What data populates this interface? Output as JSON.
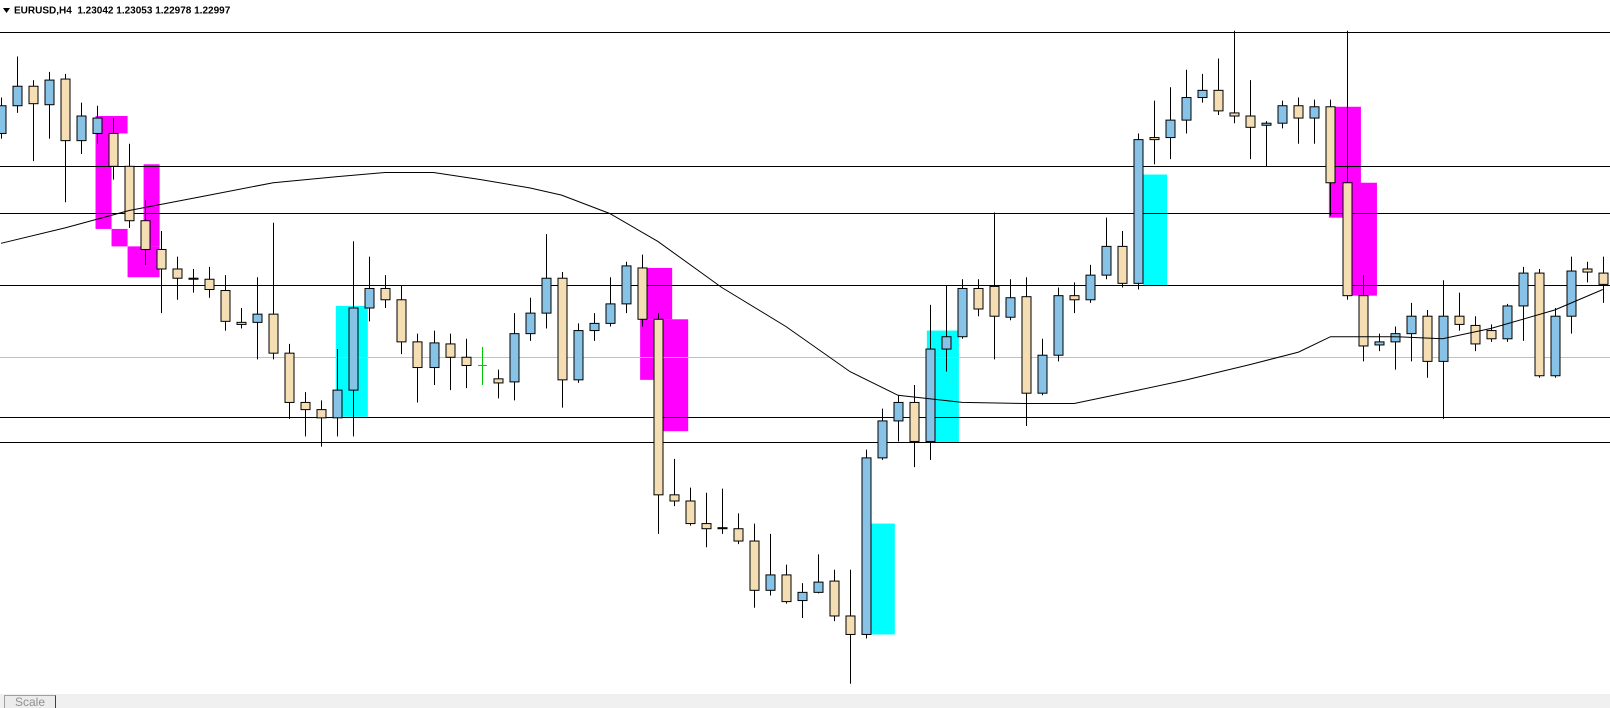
{
  "header": {
    "title": "EURUSD,H4  1.23042 1.23053 1.22978 1.22997"
  },
  "chart_data": {
    "type": "candlestick",
    "xlim": [
      -0.064,
      100.45
    ],
    "ylim": [
      1.23324,
      1.24
    ],
    "up_color": "#87c3e6",
    "down_color": "#f5deb3",
    "doji_color": "#00c800",
    "open": [
      1.2387,
      1.23897,
      1.23916,
      1.23898,
      1.23923,
      1.23863,
      1.2387,
      1.2387,
      1.23838,
      1.23785,
      1.23757,
      1.23738,
      1.23729,
      1.23728,
      1.23717,
      1.23686,
      1.23686,
      1.23694,
      1.23656,
      1.23608,
      1.23601,
      1.23593,
      1.2362,
      1.237,
      1.23719,
      1.23708,
      1.23667,
      1.23642,
      1.23665,
      1.23652,
      1.23644,
      1.23631,
      1.23628,
      1.23675,
      1.23695,
      1.23729,
      1.2363,
      1.23678,
      1.23685,
      1.23704,
      1.23739,
      1.23689,
      1.23518,
      1.23512,
      1.2349,
      1.23486,
      1.23485,
      1.23473,
      1.23425,
      1.2344,
      1.23415,
      1.23423,
      1.23434,
      1.234,
      1.23382,
      1.23554,
      1.2359,
      1.23608,
      1.2357,
      1.2366,
      1.23672,
      1.23719,
      1.23721,
      1.23691,
      1.23711,
      1.23617,
      1.23654,
      1.23712,
      1.23708,
      1.23732,
      1.2376,
      1.23724,
      1.23866,
      1.23866,
      1.23883,
      1.23905,
      1.23912,
      1.2389,
      1.23887,
      1.23878,
      1.2388,
      1.23897,
      1.23885,
      1.23896,
      1.23822,
      1.23712,
      1.23664,
      1.23667,
      1.23675,
      1.23692,
      1.23648,
      1.23692,
      1.23683,
      1.23678,
      1.2367,
      1.23702,
      1.23734,
      1.23634,
      1.23692,
      1.23738,
      1.23734
    ],
    "high": [
      1.23905,
      1.23945,
      1.23922,
      1.2393,
      1.23928,
      1.239,
      1.23897,
      1.23885,
      1.2386,
      1.23805,
      1.23775,
      1.2375,
      1.23738,
      1.2374,
      1.23732,
      1.237,
      1.2373,
      1.23783,
      1.23665,
      1.23618,
      1.2361,
      1.2366,
      1.23765,
      1.2375,
      1.23732,
      1.23722,
      1.23675,
      1.23678,
      1.23675,
      1.2367,
      1.23662,
      1.2364,
      1.23695,
      1.2371,
      1.23772,
      1.23735,
      1.23685,
      1.23695,
      1.2373,
      1.23745,
      1.23752,
      1.23695,
      1.23553,
      1.23525,
      1.2352,
      1.23524,
      1.235,
      1.2349,
      1.2348,
      1.2345,
      1.23432,
      1.2346,
      1.23445,
      1.23445,
      1.23562,
      1.23602,
      1.23615,
      1.23625,
      1.23703,
      1.23722,
      1.23728,
      1.23728,
      1.23793,
      1.23728,
      1.2373,
      1.2367,
      1.2372,
      1.23725,
      1.23742,
      1.23788,
      1.23775,
      1.2387,
      1.23902,
      1.23915,
      1.23932,
      1.23928,
      1.23943,
      1.2397,
      1.23922,
      1.23882,
      1.23902,
      1.23905,
      1.23903,
      1.23903,
      1.2397,
      1.23732,
      1.23675,
      1.23682,
      1.23705,
      1.23698,
      1.23727,
      1.23715,
      1.23692,
      1.23684,
      1.23704,
      1.2374,
      1.23738,
      1.237,
      1.2375,
      1.23745,
      1.2375
    ],
    "low": [
      1.23865,
      1.2389,
      1.23843,
      1.23865,
      1.23803,
      1.2385,
      1.2386,
      1.23825,
      1.23778,
      1.23742,
      1.23695,
      1.23708,
      1.23715,
      1.2371,
      1.23678,
      1.2368,
      1.2365,
      1.2365,
      1.23592,
      1.23575,
      1.23565,
      1.23575,
      1.23575,
      1.23687,
      1.237,
      1.23655,
      1.23608,
      1.23625,
      1.2362,
      1.23622,
      1.23625,
      1.23612,
      1.2361,
      1.23668,
      1.2368,
      1.23603,
      1.23627,
      1.23668,
      1.23682,
      1.23695,
      1.23682,
      1.2348,
      1.23507,
      1.23488,
      1.23467,
      1.2348,
      1.2347,
      1.23408,
      1.2342,
      1.23412,
      1.23398,
      1.23422,
      1.23395,
      1.23334,
      1.23378,
      1.23552,
      1.2357,
      1.23545,
      1.23552,
      1.23638,
      1.2367,
      1.23692,
      1.2365,
      1.23688,
      1.23585,
      1.23615,
      1.23648,
      1.23695,
      1.23705,
      1.23728,
      1.2372,
      1.23718,
      1.2384,
      1.23845,
      1.2387,
      1.239,
      1.23888,
      1.2388,
      1.23845,
      1.23838,
      1.23875,
      1.2386,
      1.2386,
      1.2379,
      1.23708,
      1.23648,
      1.23658,
      1.2364,
      1.23648,
      1.23632,
      1.23592,
      1.23678,
      1.23658,
      1.23667,
      1.23667,
      1.23668,
      1.23632,
      1.23632,
      1.23675,
      1.23725,
      1.23705
    ],
    "close": [
      1.23897,
      1.23916,
      1.23899,
      1.23922,
      1.23863,
      1.23887,
      1.23885,
      1.23838,
      1.23785,
      1.23757,
      1.23738,
      1.23729,
      1.23728,
      1.23718,
      1.23687,
      1.23684,
      1.23694,
      1.23656,
      1.23608,
      1.23601,
      1.23593,
      1.2362,
      1.237,
      1.23719,
      1.23708,
      1.23667,
      1.23642,
      1.23666,
      1.23652,
      1.23644,
      1.23644,
      1.23627,
      1.23675,
      1.23695,
      1.23729,
      1.2363,
      1.23678,
      1.23685,
      1.23704,
      1.23741,
      1.23689,
      1.23518,
      1.23512,
      1.2349,
      1.23485,
      1.23485,
      1.23473,
      1.23425,
      1.2344,
      1.23414,
      1.23423,
      1.23433,
      1.234,
      1.23382,
      1.23554,
      1.2359,
      1.23608,
      1.2357,
      1.2366,
      1.23672,
      1.23719,
      1.23699,
      1.23692,
      1.2371,
      1.23617,
      1.23654,
      1.23712,
      1.23708,
      1.23732,
      1.2376,
      1.23724,
      1.23864,
      1.23864,
      1.23883,
      1.23905,
      1.23912,
      1.23892,
      1.23887,
      1.23876,
      1.2388,
      1.23897,
      1.23885,
      1.23896,
      1.23822,
      1.23712,
      1.23663,
      1.23667,
      1.23675,
      1.23692,
      1.23648,
      1.23692,
      1.23684,
      1.23665,
      1.2367,
      1.23702,
      1.23734,
      1.23634,
      1.23692,
      1.23736,
      1.23735,
      1.23723
    ],
    "levels": [
      {
        "value": 1.23969,
        "color": "#000000"
      },
      {
        "value": 1.23838,
        "color": "#000000"
      },
      {
        "value": 1.23793,
        "color": "#000000"
      },
      {
        "value": 1.23722,
        "color": "#000000"
      },
      {
        "value": 1.23652,
        "color": "#c0c0c0"
      },
      {
        "value": 1.23594,
        "color": "#000000"
      },
      {
        "value": 1.23569,
        "color": "#000000"
      }
    ],
    "ma": {
      "color": "#000000",
      "x": [
        0,
        4,
        8,
        13,
        17,
        21,
        24,
        27,
        30,
        33,
        35,
        38,
        41,
        45,
        49,
        53,
        56,
        60,
        64,
        67,
        71,
        74,
        78,
        81,
        83,
        87,
        90,
        93,
        97,
        100
      ],
      "values": [
        1.23763,
        1.23778,
        1.23795,
        1.2381,
        1.23822,
        1.23828,
        1.23832,
        1.23832,
        1.23825,
        1.23817,
        1.2381,
        1.23792,
        1.23765,
        1.2372,
        1.23682,
        1.23638,
        1.23615,
        1.23608,
        1.23607,
        1.23607,
        1.2362,
        1.2363,
        1.23645,
        1.23657,
        1.23672,
        1.23672,
        1.2367,
        1.2368,
        1.23698,
        1.23718
      ]
    },
    "zones": [
      {
        "color": "#ff00ff",
        "x": [
          5.9,
          7.9
        ],
        "y": [
          1.23887,
          1.2387
        ]
      },
      {
        "color": "#ff00ff",
        "x": [
          5.9,
          6.9
        ],
        "y": [
          1.2387,
          1.23777
        ]
      },
      {
        "color": "#ff00ff",
        "x": [
          6.9,
          7.9
        ],
        "y": [
          1.23777,
          1.2376
        ]
      },
      {
        "color": "#ff00ff",
        "x": [
          7.9,
          9.9
        ],
        "y": [
          1.2376,
          1.2373
        ]
      },
      {
        "color": "#ff00ff",
        "x": [
          8.9,
          9.9
        ],
        "y": [
          1.2384,
          1.2376
        ]
      },
      {
        "color": "#00ffff",
        "x": [
          20.9,
          22.9
        ],
        "y": [
          1.23702,
          1.23594
        ]
      },
      {
        "color": "#ff00ff",
        "x": [
          39.9,
          41.9
        ],
        "y": [
          1.23739,
          1.23689
        ]
      },
      {
        "color": "#ff00ff",
        "x": [
          39.9,
          40.9
        ],
        "y": [
          1.23689,
          1.2363
        ]
      },
      {
        "color": "#ff00ff",
        "x": [
          40.9,
          42.9
        ],
        "y": [
          1.23689,
          1.2358
        ]
      },
      {
        "color": "#00ffff",
        "x": [
          54.3,
          55.8
        ],
        "y": [
          1.2349,
          1.23382
        ]
      },
      {
        "color": "#00ffff",
        "x": [
          57.8,
          59.8
        ],
        "y": [
          1.23678,
          1.23569
        ]
      },
      {
        "color": "#00ffff",
        "x": [
          71.3,
          72.8
        ],
        "y": [
          1.2383,
          1.23722
        ]
      },
      {
        "color": "#ff00ff",
        "x": [
          82.9,
          84.9
        ],
        "y": [
          1.23896,
          1.23788
        ]
      },
      {
        "color": "#ff00ff",
        "x": [
          83.9,
          85.9
        ],
        "y": [
          1.23822,
          1.23712
        ]
      }
    ]
  },
  "footer": {
    "button": "Scale"
  }
}
